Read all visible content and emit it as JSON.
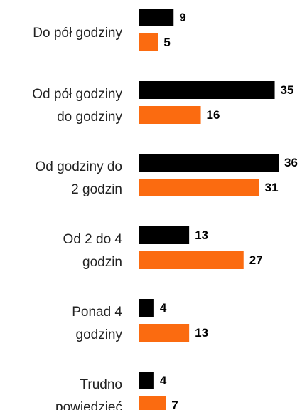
{
  "chart_data": {
    "type": "bar",
    "orientation": "horizontal",
    "categories": [
      [
        "Do pół godziny"
      ],
      [
        "Od pół godziny",
        "do godziny"
      ],
      [
        "Od godziny do",
        "2 godzin"
      ],
      [
        "Od 2 do 4",
        "godzin"
      ],
      [
        "Ponad 4",
        "godziny"
      ],
      [
        "Trudno",
        "powiedzieć"
      ]
    ],
    "series": [
      {
        "color": "#000000",
        "values": [
          9,
          35,
          36,
          13,
          4,
          4
        ]
      },
      {
        "color": "#fb6b10",
        "values": [
          5,
          16,
          31,
          27,
          13,
          7
        ]
      }
    ]
  }
}
